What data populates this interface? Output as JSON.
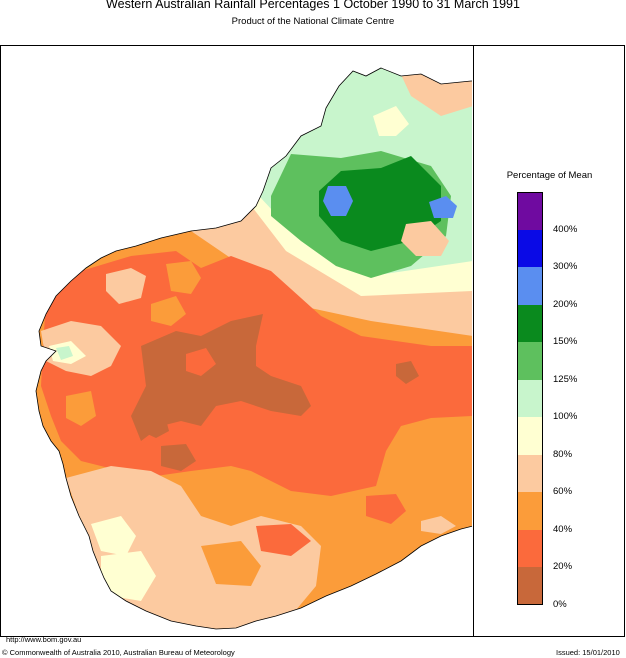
{
  "title": "Western Australian Rainfall Percentages 1 October 1990 to 31 March 1991",
  "subtitle": "Product of the National Climate Centre",
  "legend": {
    "title": "Percentage of Mean",
    "bins": [
      {
        "color": "#6f0aa0"
      },
      {
        "color": "#0a0ae6"
      },
      {
        "color": "#5a8ef0"
      },
      {
        "color": "#0a8a1e"
      },
      {
        "color": "#5ec05e"
      },
      {
        "color": "#c8f5cc"
      },
      {
        "color": "#ffffd2"
      },
      {
        "color": "#fccaa0"
      },
      {
        "color": "#fb9c3a"
      },
      {
        "color": "#fb6a3c"
      },
      {
        "color": "#c8683a"
      }
    ],
    "ticks": [
      "400%",
      "300%",
      "200%",
      "150%",
      "125%",
      "100%",
      "80%",
      "60%",
      "40%",
      "20%",
      "0%"
    ]
  },
  "footer": {
    "url": "http://www.bom.gov.au",
    "copyright": "© Commonwealth of Australia 2010, Australian Bureau of Meteorology",
    "issued": "Issued: 15/01/2010"
  }
}
